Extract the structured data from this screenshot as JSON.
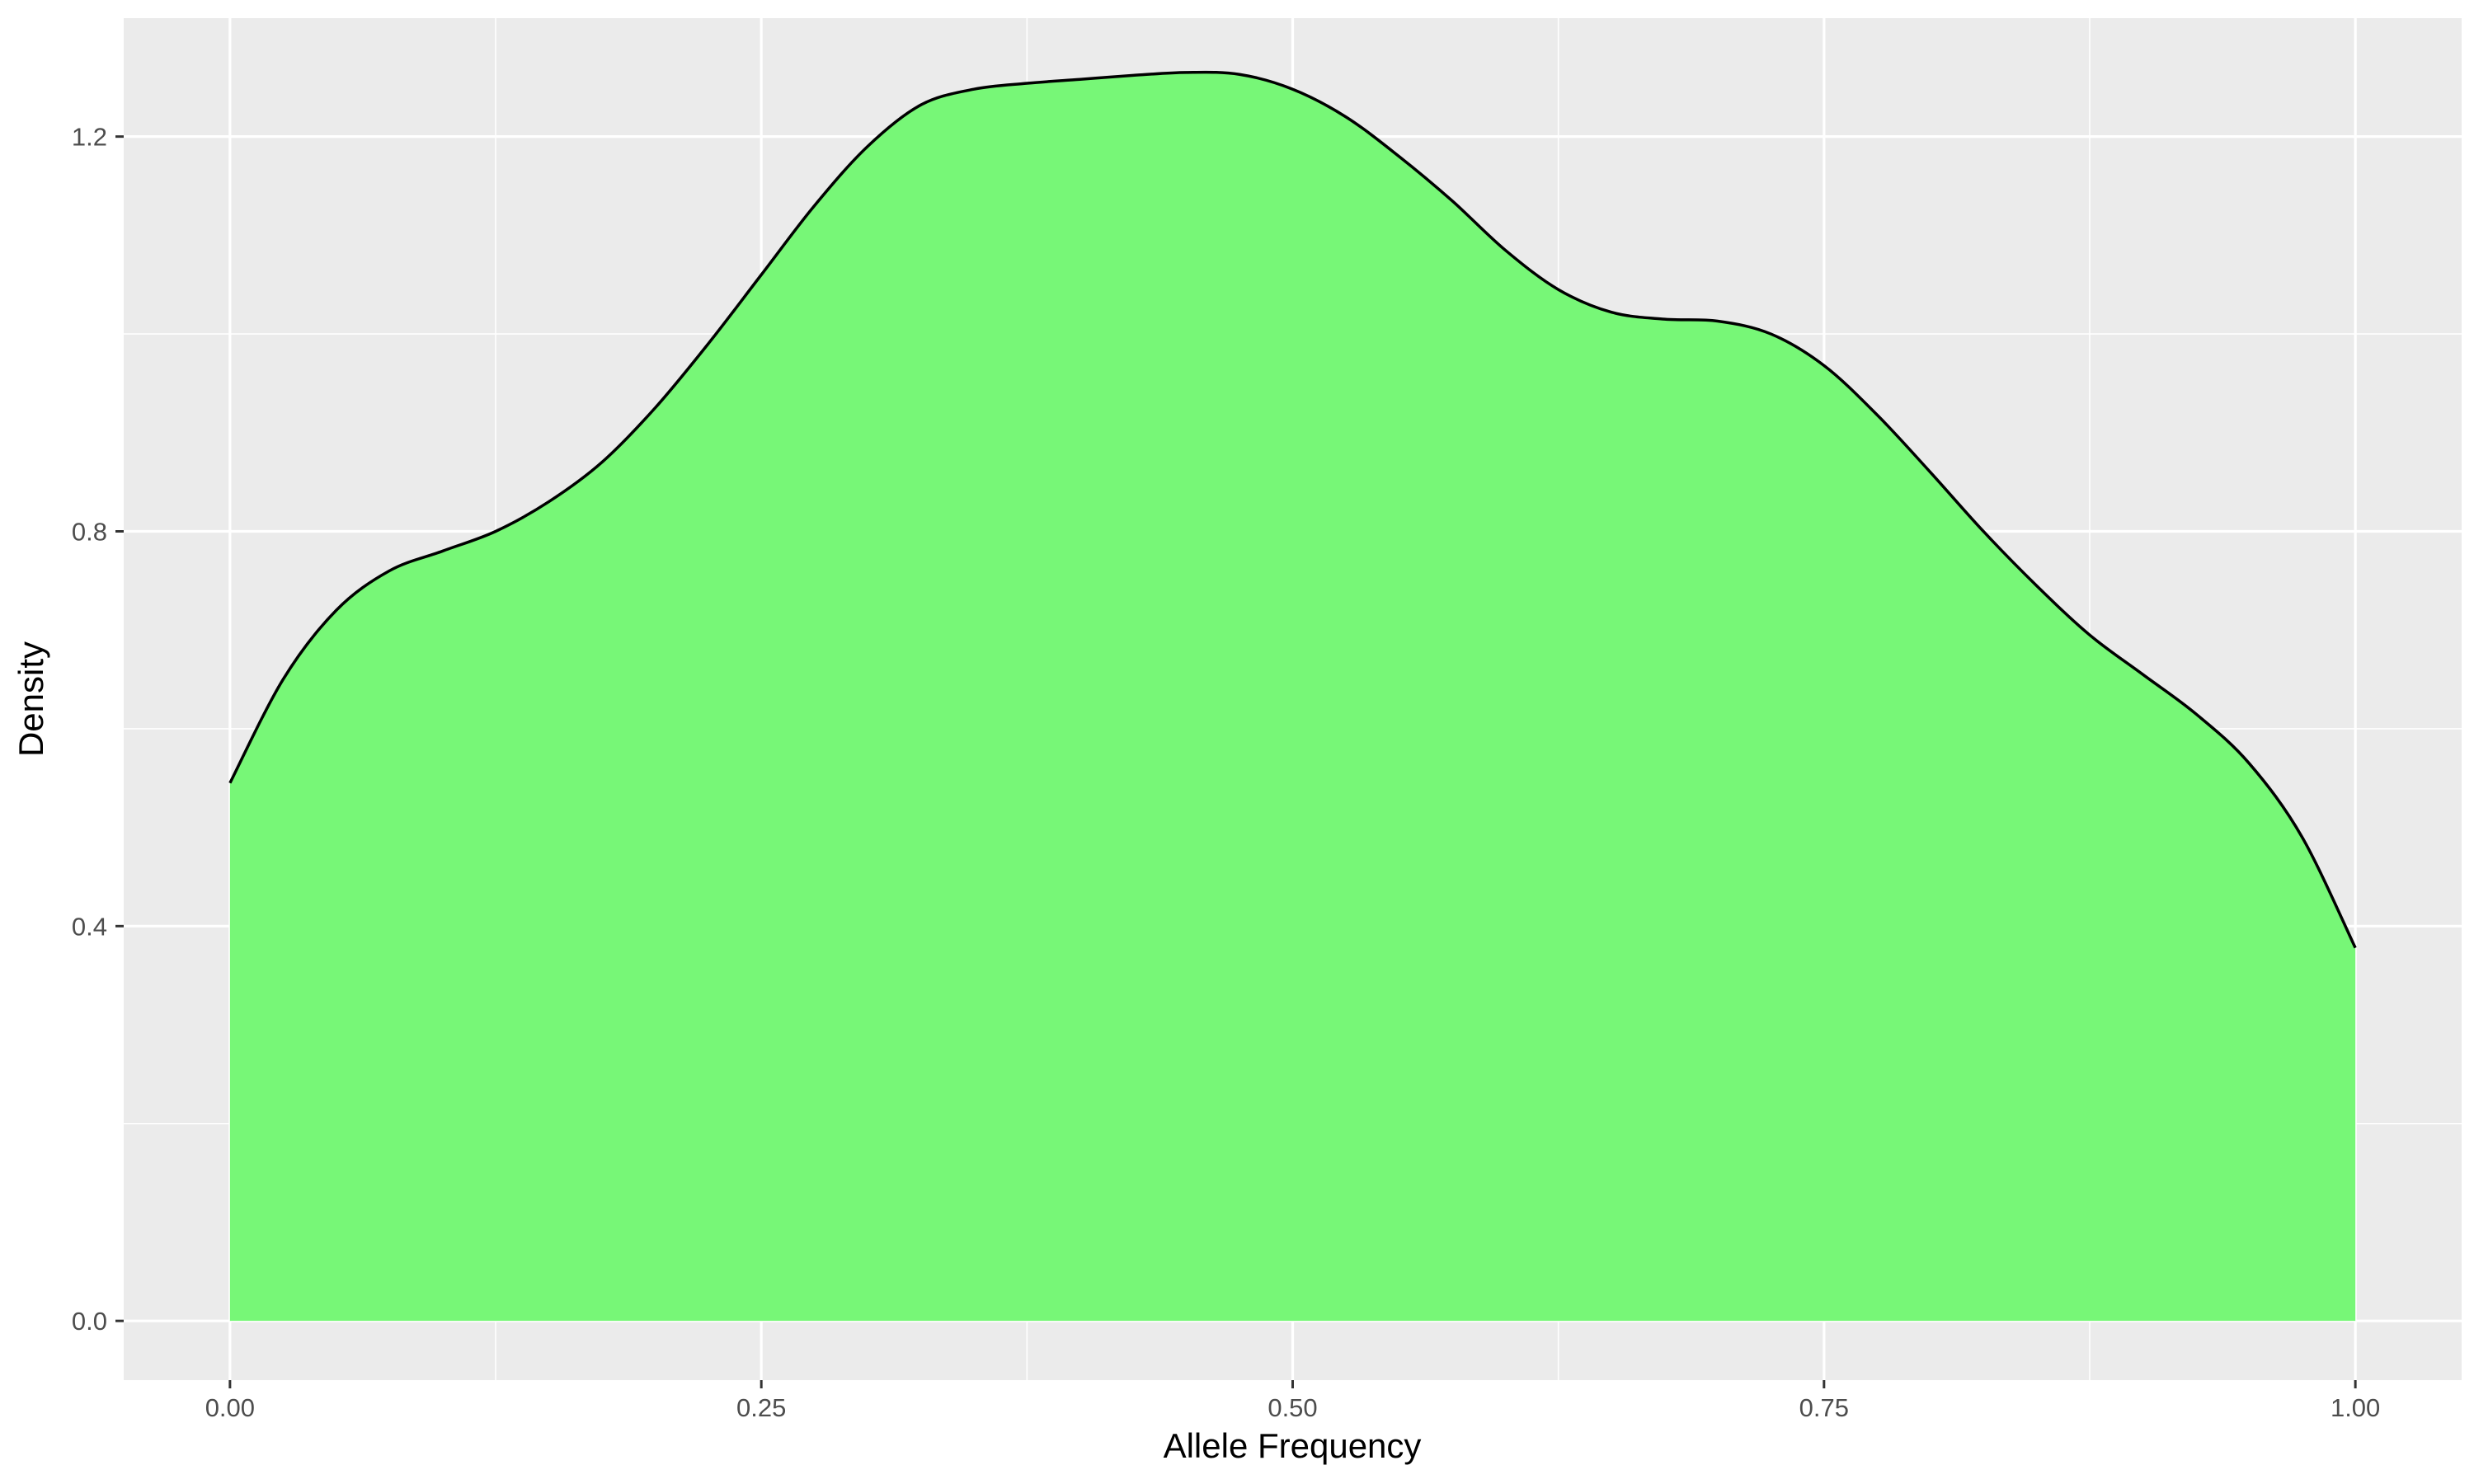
{
  "chart_data": {
    "type": "area",
    "title": "",
    "xlabel": "Allele Frequency",
    "ylabel": "Density",
    "xlim": [
      -0.05,
      1.05
    ],
    "ylim": [
      -0.06,
      1.32
    ],
    "x_ticks": [
      0.0,
      0.25,
      0.5,
      0.75,
      1.0
    ],
    "x_tick_labels": [
      "0.00",
      "0.25",
      "0.50",
      "0.75",
      "1.00"
    ],
    "y_ticks": [
      0.0,
      0.4,
      0.8,
      1.2
    ],
    "y_tick_labels": [
      "0.0",
      "0.4",
      "0.8",
      "1.2"
    ],
    "grid": true,
    "legend": "none",
    "fill_color": "#77F777",
    "line_color": "#000000",
    "panel_color": "#EBEBEB",
    "gridline_color": "#FFFFFF",
    "series": [
      {
        "x": [
          0.0,
          0.025,
          0.05,
          0.075,
          0.1,
          0.125,
          0.15,
          0.175,
          0.2,
          0.225,
          0.25,
          0.275,
          0.3,
          0.325,
          0.35,
          0.375,
          0.4,
          0.425,
          0.45,
          0.475,
          0.5,
          0.525,
          0.55,
          0.575,
          0.6,
          0.625,
          0.65,
          0.675,
          0.7,
          0.725,
          0.75,
          0.775,
          0.8,
          0.825,
          0.85,
          0.875,
          0.9,
          0.925,
          0.95,
          0.975,
          1.0
        ],
        "values": [
          0.545,
          0.65,
          0.72,
          0.76,
          0.78,
          0.8,
          0.83,
          0.87,
          0.925,
          0.99,
          1.06,
          1.13,
          1.19,
          1.232,
          1.248,
          1.254,
          1.258,
          1.262,
          1.265,
          1.263,
          1.248,
          1.22,
          1.18,
          1.135,
          1.085,
          1.045,
          1.022,
          1.015,
          1.013,
          1.0,
          0.968,
          0.918,
          0.86,
          0.8,
          0.745,
          0.695,
          0.655,
          0.615,
          0.565,
          0.49,
          0.378
        ]
      }
    ]
  }
}
